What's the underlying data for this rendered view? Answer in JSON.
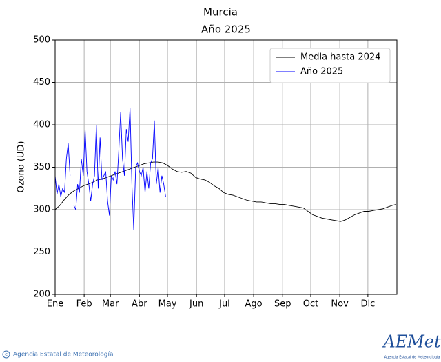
{
  "chart_data": {
    "type": "line",
    "title": "Murcia",
    "subtitle": "Año 2025",
    "y_label": "Ozono (UD)",
    "xlim": [
      0,
      365
    ],
    "ylim": [
      200,
      500
    ],
    "xticks": [
      {
        "value": 0,
        "label": "Ene"
      },
      {
        "value": 31,
        "label": "Feb"
      },
      {
        "value": 59,
        "label": "Mar"
      },
      {
        "value": 90,
        "label": "Abr"
      },
      {
        "value": 120,
        "label": "May"
      },
      {
        "value": 151,
        "label": "Jun"
      },
      {
        "value": 181,
        "label": "Jul"
      },
      {
        "value": 212,
        "label": "Ago"
      },
      {
        "value": 243,
        "label": "Sep"
      },
      {
        "value": 273,
        "label": "Oct"
      },
      {
        "value": 304,
        "label": "Nov"
      },
      {
        "value": 334,
        "label": "Dic"
      }
    ],
    "yticks": [
      200,
      250,
      300,
      350,
      400,
      450,
      500
    ],
    "grid": true,
    "legend": "upper right",
    "series": [
      {
        "name": "Media hasta 2024",
        "color": "#000000",
        "x": [
          0,
          5,
          10,
          15,
          20,
          25,
          30,
          35,
          40,
          45,
          50,
          55,
          60,
          65,
          70,
          75,
          80,
          85,
          90,
          95,
          100,
          105,
          110,
          115,
          120,
          125,
          130,
          135,
          140,
          145,
          150,
          155,
          160,
          165,
          170,
          175,
          180,
          185,
          190,
          195,
          200,
          205,
          210,
          215,
          220,
          225,
          230,
          235,
          240,
          245,
          250,
          255,
          260,
          265,
          270,
          275,
          280,
          285,
          290,
          295,
          300,
          305,
          310,
          315,
          320,
          325,
          330,
          335,
          340,
          345,
          350,
          355,
          360,
          364
        ],
        "values": [
          300,
          305,
          312,
          318,
          322,
          325,
          328,
          330,
          332,
          335,
          336,
          338,
          340,
          342,
          344,
          346,
          348,
          350,
          352,
          354,
          355,
          356,
          356,
          355,
          352,
          348,
          345,
          344,
          345,
          343,
          338,
          336,
          335,
          332,
          328,
          325,
          320,
          318,
          317,
          315,
          313,
          311,
          310,
          309,
          309,
          308,
          307,
          307,
          306,
          306,
          305,
          304,
          303,
          302,
          298,
          294,
          292,
          290,
          289,
          288,
          287,
          286,
          288,
          291,
          294,
          296,
          298,
          298,
          299,
          300,
          301,
          303,
          305,
          306
        ]
      },
      {
        "name": "Año 2025",
        "color": "#0000ff",
        "x": [
          0,
          2,
          4,
          6,
          8,
          10,
          12,
          14,
          16,
          18,
          20,
          22,
          24,
          26,
          28,
          30,
          32,
          34,
          36,
          38,
          40,
          42,
          44,
          46,
          48,
          50,
          52,
          54,
          56,
          58,
          60,
          62,
          64,
          66,
          68,
          70,
          72,
          74,
          76,
          78,
          80,
          82,
          84,
          86,
          88,
          90,
          92,
          94,
          96,
          98,
          100,
          102,
          104,
          106,
          108,
          110,
          112,
          114,
          116,
          118
        ],
        "values": [
          340,
          318,
          330,
          315,
          325,
          320,
          360,
          378,
          340,
          null,
          305,
          300,
          330,
          320,
          360,
          340,
          395,
          345,
          330,
          310,
          330,
          340,
          400,
          325,
          385,
          335,
          340,
          345,
          310,
          293,
          340,
          335,
          345,
          330,
          370,
          415,
          360,
          340,
          395,
          380,
          420,
          330,
          276,
          350,
          355,
          345,
          340,
          350,
          320,
          345,
          325,
          355,
          360,
          405,
          330,
          350,
          320,
          340,
          330,
          315
        ]
      }
    ]
  },
  "footer": {
    "agency": "Agencia Estatal de Meteorología",
    "logo": "AEMet",
    "logo_caption": "Agencia Estatal de Meteorología"
  }
}
